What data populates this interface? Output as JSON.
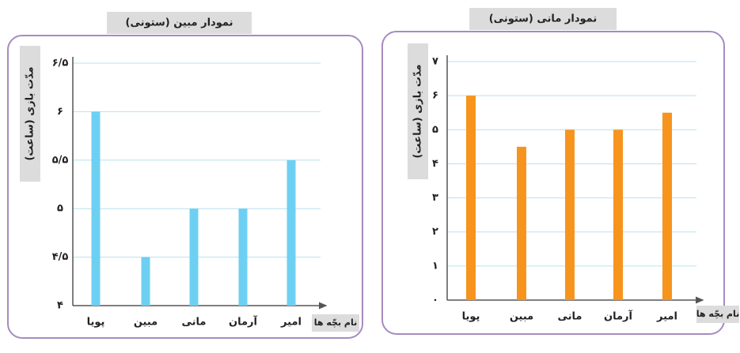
{
  "chart_data": [
    {
      "type": "bar",
      "title": "نمودار مبین (ستونی)",
      "y_label": "مدّت بازی (ساعت)",
      "x_label": "نام بچّه ها",
      "categories": [
        "پویا",
        "مبین",
        "مانی",
        "آرمان",
        "امیر"
      ],
      "values": [
        6,
        4.5,
        5,
        5,
        5.5
      ],
      "color": "#6dd0f2",
      "ylim": [
        4,
        6.5
      ],
      "yticks": [
        {
          "value": 4,
          "label": "۴"
        },
        {
          "value": 4.5,
          "label": "۴/۵"
        },
        {
          "value": 5,
          "label": "۵"
        },
        {
          "value": 5.5,
          "label": "۵/۵"
        },
        {
          "value": 6,
          "label": "۶"
        },
        {
          "value": 6.5,
          "label": "۶/۵"
        }
      ],
      "grid": true
    },
    {
      "type": "bar",
      "title": "نمودار مانی (ستونی)",
      "y_label": "مدّت بازی (ساعت)",
      "x_label": "نام بچّه ها",
      "categories": [
        "پویا",
        "مبین",
        "مانی",
        "آرمان",
        "امیر"
      ],
      "values": [
        6,
        4.5,
        5,
        5,
        5.5
      ],
      "color": "#f7941d",
      "ylim": [
        0,
        7
      ],
      "yticks": [
        {
          "value": 0,
          "label": "۰"
        },
        {
          "value": 1,
          "label": "۱"
        },
        {
          "value": 2,
          "label": "۲"
        },
        {
          "value": 3,
          "label": "۳"
        },
        {
          "value": 4,
          "label": "۴"
        },
        {
          "value": 5,
          "label": "۵"
        },
        {
          "value": 6,
          "label": "۶"
        },
        {
          "value": 7,
          "label": "۷"
        }
      ],
      "grid": true
    }
  ]
}
